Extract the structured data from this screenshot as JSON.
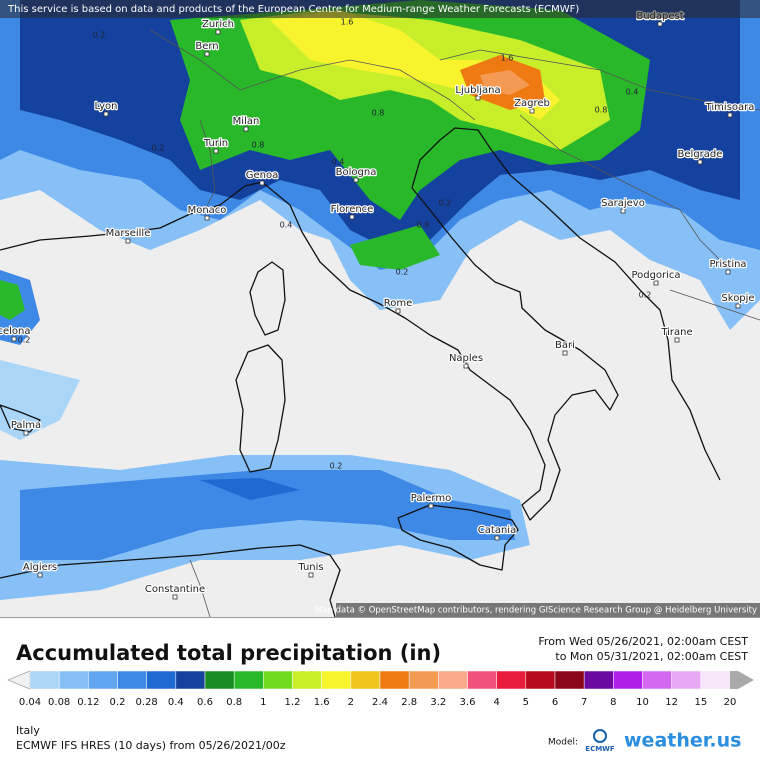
{
  "notice": "This service is based on data and products of the European Centre for Medium-range Weather Forecasts (ECMWF)",
  "attribution": "Map data © OpenStreetMap contributors, rendering GIScience Research Group @ Heidelberg University",
  "cities": [
    "Zurich",
    "Budapest",
    "Bern",
    "Lyon",
    "Milan",
    "Turin",
    "Genoa",
    "Monaco",
    "Marseille",
    "Bologna",
    "Florence",
    "Ljubljana",
    "Zagreb",
    "Timisoara",
    "Belgrade",
    "Sarajevo",
    "Podgorica",
    "Pristina",
    "Skopje",
    "Tirane",
    "Rome",
    "Naples",
    "Bari",
    "Palma",
    "celona",
    "Palermo",
    "Catania",
    "Algiers",
    "Constantine",
    "Tunis"
  ],
  "contour_labels": [
    "0.2",
    "1.6",
    "1.6",
    "0.8",
    "0.4",
    "0.2",
    "0.2",
    "0.4",
    "0.8",
    "0.2",
    "0.2",
    "0.2",
    "0.8",
    "0.4",
    "0.2",
    "0.8"
  ],
  "legend": {
    "title": "Accumulated total precipitation (in)",
    "from": "From Wed 05/26/2021, 02:00am CEST",
    "to": "to Mon 05/31/2021, 02:00am CEST",
    "below_color": "#f2f2f2",
    "scale": [
      {
        "label": "0.04",
        "color": "#a9d5f9"
      },
      {
        "label": "0.08",
        "color": "#86c0f6"
      },
      {
        "label": "0.12",
        "color": "#62a6f0"
      },
      {
        "label": "0.2",
        "color": "#3f89e6"
      },
      {
        "label": "0.28",
        "color": "#1f69d2"
      },
      {
        "label": "0.4",
        "color": "#14429e"
      },
      {
        "label": "0.6",
        "color": "#178c22"
      },
      {
        "label": "0.8",
        "color": "#28b82a"
      },
      {
        "label": "1",
        "color": "#6fdc22"
      },
      {
        "label": "1.2",
        "color": "#c8ee2a"
      },
      {
        "label": "1.6",
        "color": "#f7f42e"
      },
      {
        "label": "2",
        "color": "#f2c51e"
      },
      {
        "label": "2.4",
        "color": "#f07a12"
      },
      {
        "label": "2.8",
        "color": "#f59a52"
      },
      {
        "label": "3.2",
        "color": "#f8a989"
      },
      {
        "label": "3.6",
        "color": "#f0527a"
      },
      {
        "label": "4",
        "color": "#e81c3c"
      },
      {
        "label": "5",
        "color": "#b8081c"
      },
      {
        "label": "6",
        "color": "#8a0618"
      },
      {
        "label": "7",
        "color": "#6a0aa0"
      },
      {
        "label": "8",
        "color": "#b01ee8"
      },
      {
        "label": "10",
        "color": "#d468f0"
      },
      {
        "label": "12",
        "color": "#e9a8f3"
      },
      {
        "label": "15",
        "color": "#f6e6fa"
      },
      {
        "label": "20",
        "color": "#aaaaaa"
      }
    ]
  },
  "footer": {
    "region": "Italy",
    "model": "ECMWF IFS HRES (10 days) from 05/26/2021/00z",
    "model_label": "Model:",
    "ecmwf": "ECMWF",
    "brand": "weather.us"
  }
}
